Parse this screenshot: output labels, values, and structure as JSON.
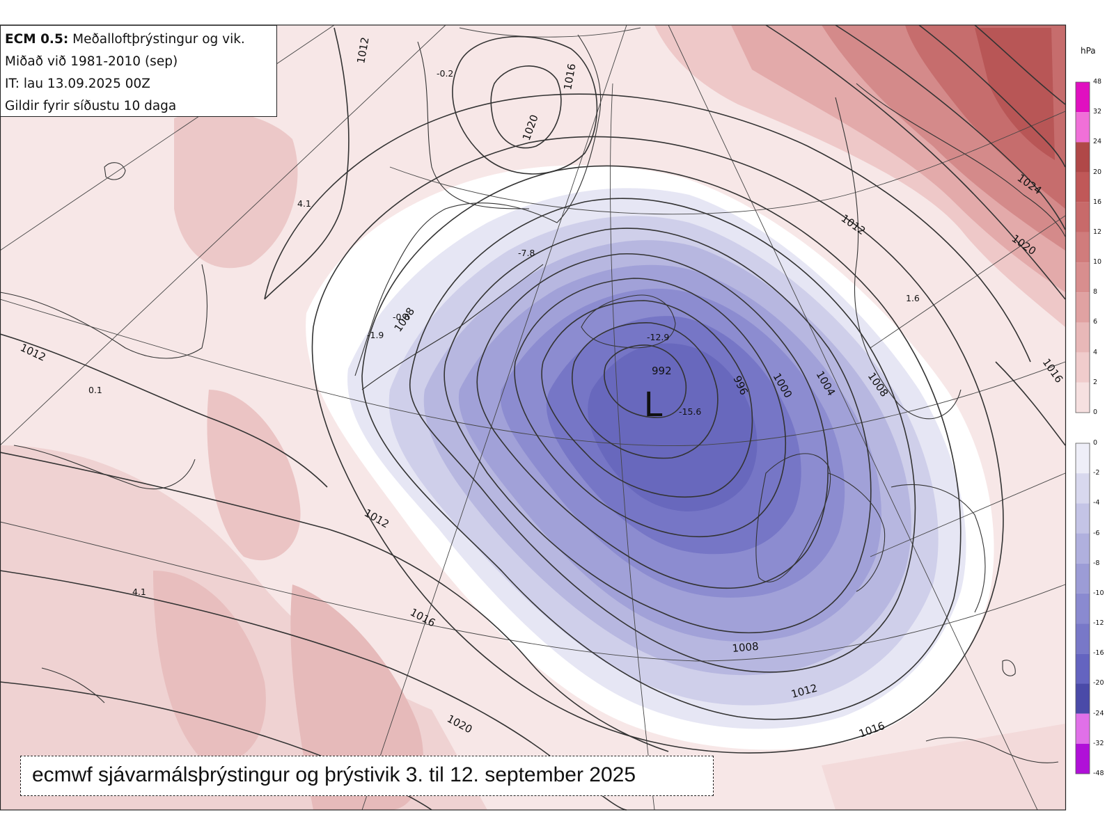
{
  "info": {
    "model": "ECM 0.5:",
    "title": "Meðalloftþrýstingur og vik.",
    "reference": "Miðað við 1981-2010 (sep)",
    "init_time": "IT: lau 13.09.2025 00Z",
    "validity": "Gildir fyrir síðustu 10 daga"
  },
  "caption": "ecmwf sjávarmálsþrýstingur og þrýstivik 3. til 12. september 2025",
  "low_center": {
    "symbol": "L",
    "pressure": "992",
    "anomaly": "-15.6"
  },
  "isobar_labels": [
    "1012",
    "1016",
    "1020",
    "1024",
    "1008",
    "1004",
    "1000",
    "996",
    "992"
  ],
  "anomaly_labels": [
    "-0.2",
    "4.1",
    "-7.8",
    "-0.6",
    "-1.9",
    "-12.9",
    "-15.6",
    "0.1",
    "4.1",
    "1.6"
  ],
  "colorbar": {
    "unit": "hPa",
    "positive_ticks": [
      "48",
      "32",
      "24",
      "20",
      "16",
      "12",
      "10",
      "8",
      "6",
      "4",
      "2",
      "0"
    ],
    "negative_ticks": [
      "0",
      "-2",
      "-4",
      "-6",
      "-8",
      "-10",
      "-12",
      "-16",
      "-20",
      "-24",
      "-32",
      "-48"
    ],
    "positive_colors": [
      "#e010c0",
      "#f070d8",
      "#b04848",
      "#c05858",
      "#c86a6a",
      "#d07c7c",
      "#d88e8e",
      "#e0a2a2",
      "#e8b8b8",
      "#f0cccc",
      "#f6e0e0"
    ],
    "negative_colors": [
      "#eeeef8",
      "#d8d8ee",
      "#c4c4e6",
      "#b0b0de",
      "#9c9cd6",
      "#8a8ad0",
      "#7878c8",
      "#6464c0",
      "#4a4aa8",
      "#e070e8",
      "#b010d8"
    ]
  }
}
